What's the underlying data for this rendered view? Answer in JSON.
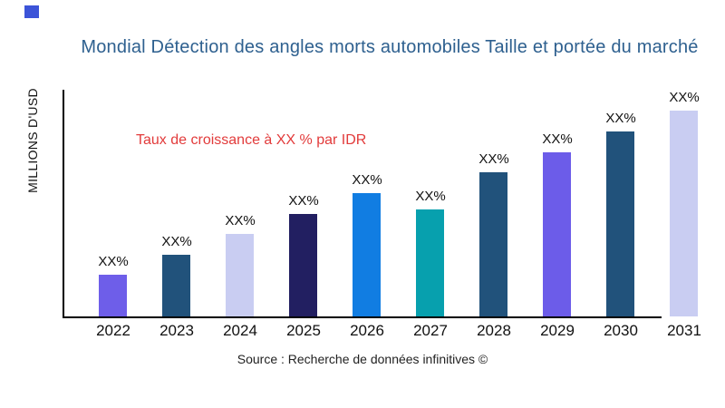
{
  "logo": {
    "color": "#3c54d8"
  },
  "title": {
    "text": "Mondial Détection des angles morts automobiles Taille et portée du marché",
    "color": "#2e608f"
  },
  "annotation": {
    "text": "Taux de croissance à XX % par IDR",
    "color": "#e23b3b"
  },
  "y_axis_label": "MILLIONS D'USD",
  "source": "Source : Recherche de données infinitives ©",
  "chart_data": {
    "type": "bar",
    "title": "Mondial Détection des angles morts automobiles Taille et portée du marché",
    "xlabel": "",
    "ylabel": "MILLIONS D'USD",
    "grid": false,
    "legend": null,
    "annotations": [
      "Taux de croissance à XX % par IDR"
    ],
    "categories": [
      "2022",
      "2023",
      "2024",
      "2025",
      "2026",
      "2027",
      "2028",
      "2029",
      "2030",
      "2031"
    ],
    "bar_labels": [
      "XX%",
      "XX%",
      "XX%",
      "XX%",
      "XX%",
      "XX%",
      "XX%",
      "XX%",
      "XX%",
      "XX%"
    ],
    "values_note": "numeric values masked as XX% in source image; heights are relative pixels",
    "values_relative": [
      46,
      68,
      91,
      113,
      136,
      118,
      159,
      181,
      204,
      227
    ],
    "bar_colors": [
      "#6e5ee9",
      "#21527b",
      "#c9cdf2",
      "#221f61",
      "#117de2",
      "#07a0ae",
      "#21527b",
      "#6c5ce9",
      "#21527b",
      "#c9cdf2"
    ],
    "axis_color": "#000000"
  }
}
